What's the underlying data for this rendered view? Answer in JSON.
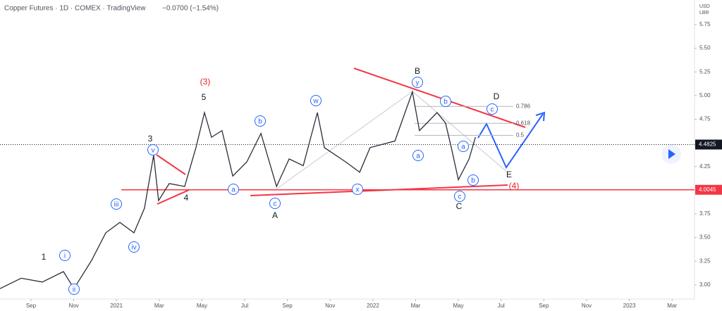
{
  "chart_data": {
    "type": "line",
    "title": "Copper Futures · 1D · COMEX · TradingView",
    "subtitle": "−0.0700 (−1.54%)",
    "y_axis_unit": "USD",
    "y_axis_unit2": "LBR",
    "series": [
      {
        "name": "Copper Futures",
        "color": "#2a2e39",
        "x": [
          -1.45,
          -0.46,
          0.53,
          1.52,
          2.01,
          2.84,
          3.5,
          4.16,
          4.82,
          5.31,
          5.74,
          5.97,
          6.47,
          7.19,
          7.72,
          8.12,
          8.45,
          8.94,
          9.44,
          10.1,
          10.76,
          11.49,
          12.08,
          12.74,
          13.4,
          13.73,
          14.72,
          15.38,
          15.87,
          17.03,
          17.85,
          18.18,
          19.0,
          19.4,
          19.67,
          20.0,
          20.5,
          20.8
        ],
        "values": [
          2.96,
          3.07,
          3.03,
          3.14,
          2.96,
          3.26,
          3.55,
          3.66,
          3.55,
          3.81,
          4.37,
          3.89,
          4.07,
          4.04,
          4.45,
          4.82,
          4.56,
          4.63,
          4.15,
          4.3,
          4.6,
          4.04,
          4.33,
          4.26,
          4.82,
          4.45,
          4.3,
          4.19,
          4.45,
          4.52,
          5.04,
          4.63,
          4.82,
          4.71,
          4.45,
          4.11,
          4.33,
          4.56
        ]
      }
    ],
    "xlim": [
      -1.45,
      31.05
    ],
    "xticks": [
      {
        "value": 0,
        "label": "Sep"
      },
      {
        "value": 2,
        "label": "Nov"
      },
      {
        "value": 4,
        "label": "2021"
      },
      {
        "value": 6,
        "label": "Mar"
      },
      {
        "value": 8,
        "label": "May"
      },
      {
        "value": 10,
        "label": "Jul"
      },
      {
        "value": 12,
        "label": "Sep"
      },
      {
        "value": 14,
        "label": "Nov"
      },
      {
        "value": 16,
        "label": "2022"
      },
      {
        "value": 18,
        "label": "Mar"
      },
      {
        "value": 20,
        "label": "May"
      },
      {
        "value": 22,
        "label": "Jul"
      },
      {
        "value": 24,
        "label": "Sep"
      },
      {
        "value": 26,
        "label": "Nov"
      },
      {
        "value": 28,
        "label": "2023"
      },
      {
        "value": 30,
        "label": "Mar"
      }
    ],
    "ylim": [
      2.85,
      6.01
    ],
    "yticks": [
      5.75,
      {
        "value": 5.5,
        "label": "5.50"
      },
      5.25,
      {
        "value": 5.0,
        "label": "5.00"
      },
      4.75,
      4.25,
      3.75,
      {
        "value": 3.5,
        "label": "3.50"
      },
      3.25,
      {
        "value": 3.0,
        "label": "3.00"
      }
    ],
    "last_price": 4.4825,
    "support_price": 4.0045,
    "fib_levels": [
      {
        "ratio": 0.786,
        "price": 4.885
      },
      {
        "ratio": 0.618,
        "price": 4.707
      },
      {
        "ratio": 0.5,
        "price": 4.58
      }
    ],
    "annotations": [
      {
        "text": "1",
        "color": "#131722",
        "circled": false
      },
      {
        "text": "i",
        "color": "#2962ff",
        "circled": true
      },
      {
        "text": "ii",
        "color": "#2962ff",
        "circled": true
      },
      {
        "text": "iii",
        "color": "#2962ff",
        "circled": true
      },
      {
        "text": "iv",
        "color": "#2962ff",
        "circled": true
      },
      {
        "text": "v",
        "color": "#2962ff",
        "circled": true
      },
      {
        "text": "3",
        "color": "#131722",
        "circled": false
      },
      {
        "text": "4",
        "color": "#131722",
        "circled": false
      },
      {
        "text": "5",
        "color": "#131722",
        "circled": false
      },
      {
        "text": "(3)",
        "color": "#e91e24",
        "circled": false
      },
      {
        "text": "a",
        "color": "#2962ff",
        "circled": true
      },
      {
        "text": "b",
        "color": "#2962ff",
        "circled": true
      },
      {
        "text": "c",
        "color": "#2962ff",
        "circled": true
      },
      {
        "text": "A",
        "color": "#131722",
        "circled": false
      },
      {
        "text": "w",
        "color": "#2962ff",
        "circled": true
      },
      {
        "text": "x",
        "color": "#2962ff",
        "circled": true
      },
      {
        "text": "y",
        "color": "#2962ff",
        "circled": true
      },
      {
        "text": "B",
        "color": "#131722",
        "circled": false
      },
      {
        "text": "a",
        "color": "#2962ff",
        "circled": true
      },
      {
        "text": "b",
        "color": "#2962ff",
        "circled": true
      },
      {
        "text": "a",
        "color": "#2962ff",
        "circled": true
      },
      {
        "text": "b",
        "color": "#2962ff",
        "circled": true
      },
      {
        "text": "c",
        "color": "#2962ff",
        "circled": true
      },
      {
        "text": "C",
        "color": "#131722",
        "circled": false
      },
      {
        "text": "D",
        "color": "#131722",
        "circled": false
      },
      {
        "text": "c",
        "color": "#2962ff",
        "circled": true
      },
      {
        "text": "E",
        "color": "#131722",
        "circled": false
      },
      {
        "text": "(4)",
        "color": "#e91e24",
        "circled": false
      }
    ]
  }
}
